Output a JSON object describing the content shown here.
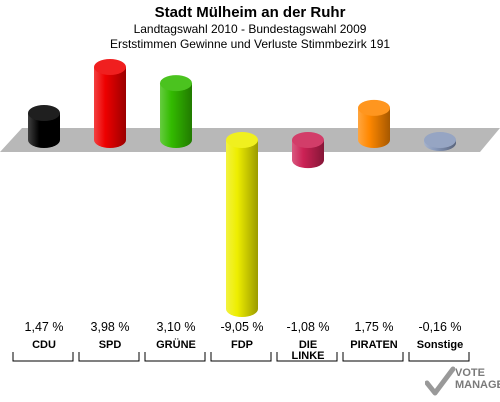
{
  "header": {
    "title": "Stadt Mülheim an der Ruhr",
    "subtitle1": "Landtagswahl 2010 - Bundestagswahl 2009",
    "subtitle2": "Erststimmen Gewinne und Verluste Stimmbezirk 191"
  },
  "chart_data": {
    "type": "bar",
    "title": "Stadt Mülheim an der Ruhr",
    "subtitle": [
      "Landtagswahl 2010 - Bundestagswahl 2009",
      "Erststimmen Gewinne und Verluste Stimmbezirk 191"
    ],
    "categories": [
      "CDU",
      "SPD",
      "GRÜNE",
      "FDP",
      "DIE LINKE",
      "PIRATEN",
      "Sonstige"
    ],
    "category_lines": [
      [
        "CDU"
      ],
      [
        "SPD"
      ],
      [
        "GRÜNE"
      ],
      [
        "FDP"
      ],
      [
        "DIE",
        "LINKE"
      ],
      [
        "PIRATEN"
      ],
      [
        "Sonstige"
      ]
    ],
    "values": [
      1.47,
      3.98,
      3.1,
      -9.05,
      -1.08,
      1.75,
      -0.16
    ],
    "value_labels": [
      "1,47 %",
      "3,98 %",
      "3,10 %",
      "-9,05 %",
      "-1,08 %",
      "1,75 %",
      "-0,16 %"
    ],
    "colors": [
      "#000000",
      "#ee0000",
      "#33bb00",
      "#eeee00",
      "#cc2255",
      "#ff8800",
      "#8899bb"
    ],
    "xlabel": "",
    "ylabel": "",
    "ylim": [
      -9.05,
      3.98
    ],
    "grid": false,
    "legend": "none"
  },
  "logo": {
    "line1": "VOTE",
    "line2": "MANAGER"
  }
}
